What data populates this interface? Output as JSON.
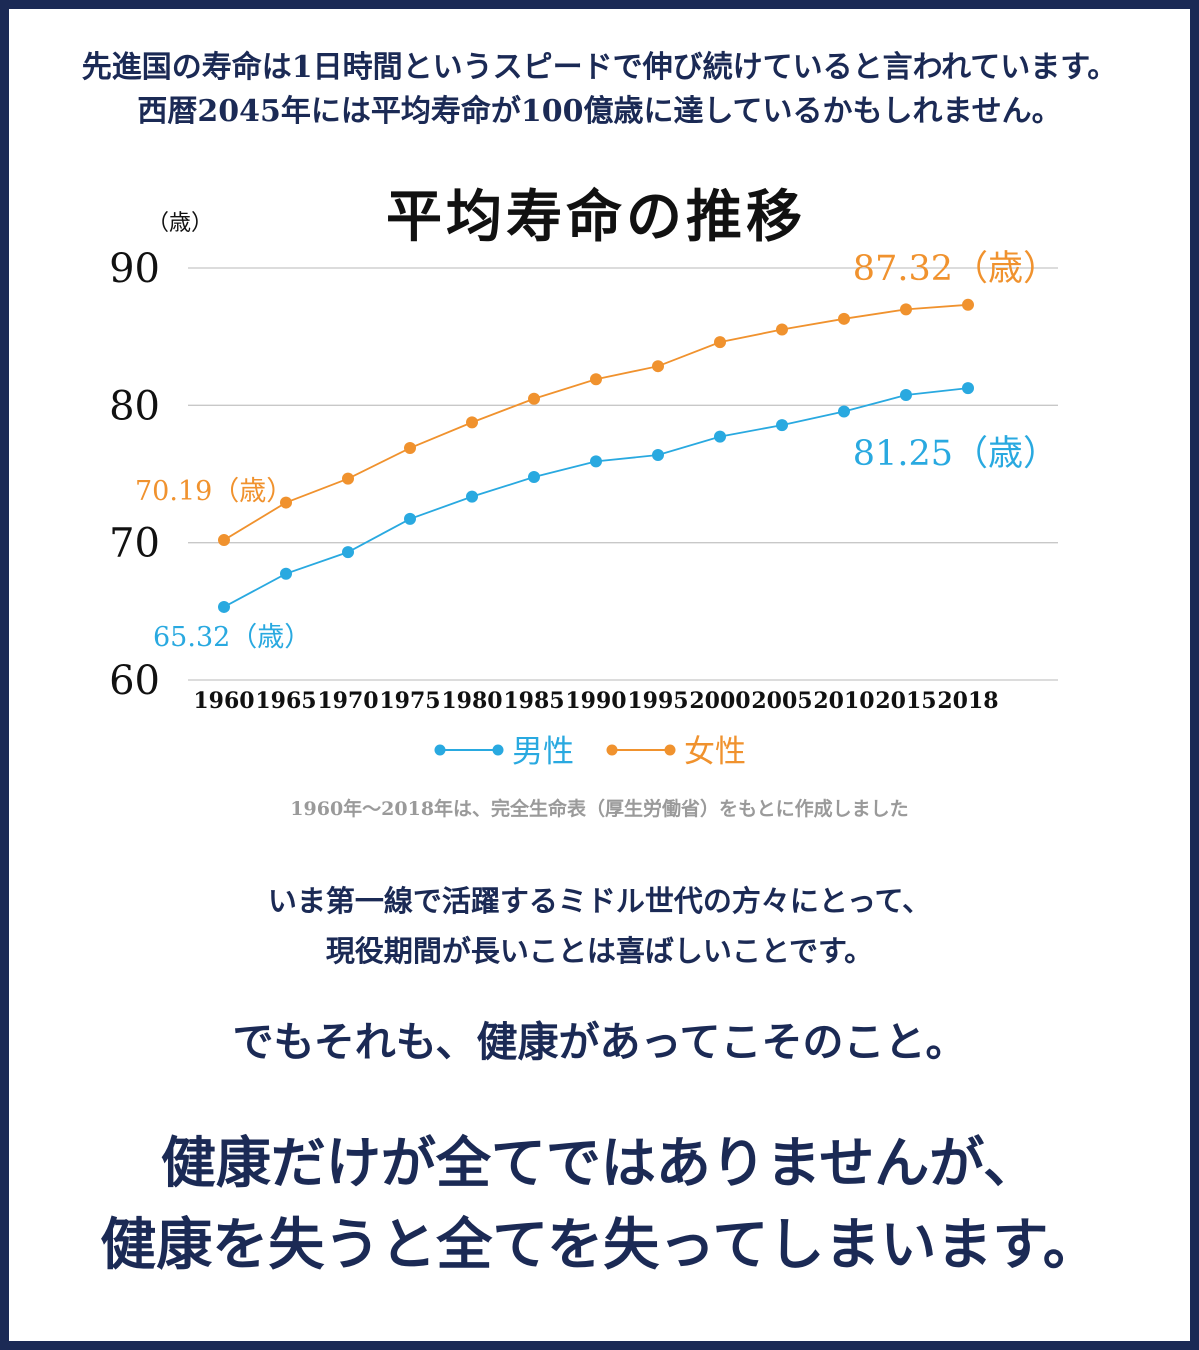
{
  "intro": {
    "line1": "先進国の寿命は1日時間というスピードで伸び続けていると言われています。",
    "line2": "西暦2045年には平均寿命が100億歳に達しているかもしれません。"
  },
  "chart_data": {
    "type": "line",
    "title": "平均寿命の推移",
    "ylabel": "（歳）",
    "ylim": [
      60,
      90
    ],
    "yticks": [
      "90",
      "80",
      "70",
      "60"
    ],
    "yticks_values": [
      90,
      80,
      70,
      60
    ],
    "categories": [
      "1960",
      "1965",
      "1970",
      "1975",
      "1980",
      "1985",
      "1990",
      "1995",
      "2000",
      "2005",
      "2010",
      "2015",
      "2018"
    ],
    "grid": true,
    "legend_position": "bottom",
    "series": [
      {
        "name": "男性",
        "color": "#29a9e0",
        "values": [
          65.32,
          67.74,
          69.31,
          71.73,
          73.35,
          74.78,
          75.92,
          76.38,
          77.72,
          78.56,
          79.55,
          80.75,
          81.25
        ]
      },
      {
        "name": "女性",
        "color": "#f0922e",
        "values": [
          70.19,
          72.92,
          74.66,
          76.89,
          78.76,
          80.48,
          81.9,
          82.85,
          84.6,
          85.52,
          86.3,
          86.99,
          87.32
        ]
      }
    ],
    "annotations": {
      "male_start": "65.32（歳）",
      "male_end": "81.25（歳）",
      "female_start": "70.19（歳）",
      "female_end": "87.32（歳）"
    }
  },
  "source": "1960年〜2018年は、完全生命表（厚生労働省）をもとに作成しました",
  "middle": {
    "line1": "いま第一線で活躍するミドル世代の方々にとって、",
    "line2": "現役期間が長いことは喜ばしいことです。"
  },
  "highlight1": "でもそれも、健康があってこそのこと。",
  "closing": {
    "line1": "健康だけが全てではありませんが、",
    "line2": "健康を失うと全てを失ってしまいます。"
  },
  "colors": {
    "navy": "#1b2a55",
    "male": "#29a9e0",
    "female": "#f0922e",
    "highlight": "#fbf4a0",
    "source_gray": "#9a9a9a"
  }
}
